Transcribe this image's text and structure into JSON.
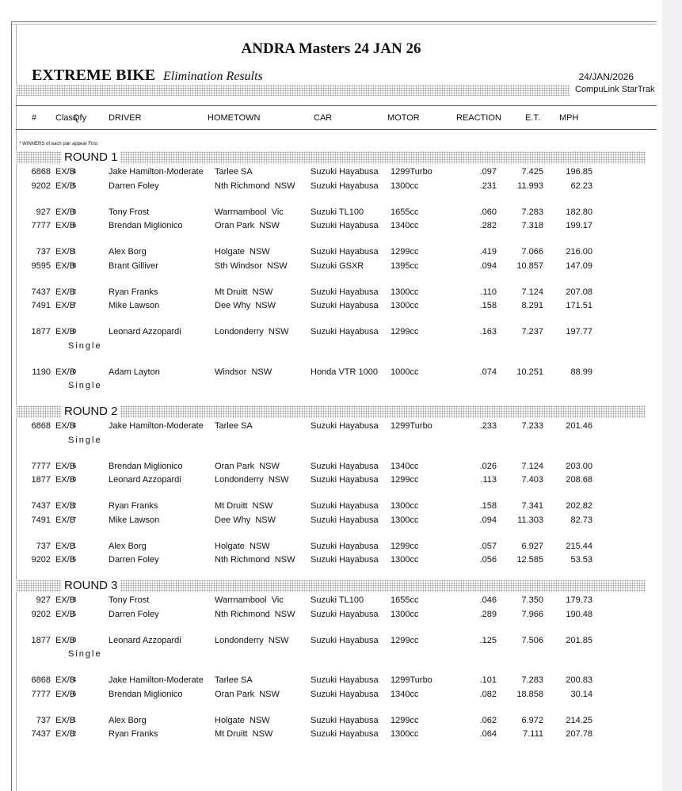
{
  "header": {
    "title": "ANDRA Masters 24 JAN 26",
    "event_class": "EXTREME BIKE",
    "subtitle": "Elimination Results",
    "date": "24/JAN/2026",
    "software": "CompuLink StarTrak"
  },
  "columns": [
    "#",
    "Class",
    "Qfy",
    "DRIVER",
    "HOMETOWN",
    "CAR",
    "MOTOR",
    "REACTION",
    "E.T.",
    "MPH"
  ],
  "note": "* WINNERS of each pair appear First",
  "rounds": [
    {
      "label": "ROUND 1",
      "pairs": [
        {
          "rows": [
            [
              "6868",
              "EX/B",
              "4",
              "Jake Hamilton-Moderate",
              "Tarlee SA",
              "Suzuki Hayabusa",
              "1299Turbo",
              ".097",
              "7.425",
              "196.85"
            ],
            [
              "9202",
              "EX/B",
              "5",
              "Darren Foley",
              "Nth Richmond  NSW",
              "Suzuki Hayabusa",
              "1300cc",
              ".231",
              "11.993",
              "62.23"
            ]
          ]
        },
        {
          "rows": [
            [
              "927",
              "EX/B",
              "3",
              "Tony Frost",
              "Warrnambool  Vic",
              "Suzuki TL100",
              "1655cc",
              ".060",
              "7.283",
              "182.80"
            ],
            [
              "7777",
              "EX/B",
              "6",
              "Brendan Miglionico",
              "Oran Park  NSW",
              "Suzuki Hayabusa",
              "1340cc",
              ".282",
              "7.318",
              "199.17"
            ]
          ]
        },
        {
          "rows": [
            [
              "737",
              "EX/B",
              "1",
              "Alex Borg",
              "Holgate  NSW",
              "Suzuki Hayabusa",
              "1299cc",
              ".419",
              "7.066",
              "216.00"
            ],
            [
              "9595",
              "EX/B",
              "8",
              "Brant Gilliver",
              "Sth Windsor  NSW",
              "Suzuki GSXR",
              "1395cc",
              ".094",
              "10.857",
              "147.09"
            ]
          ]
        },
        {
          "rows": [
            [
              "7437",
              "EX/B",
              "2",
              "Ryan Franks",
              "Mt Druitt  NSW",
              "Suzuki Hayabusa",
              "1300cc",
              ".110",
              "7.124",
              "207.08"
            ],
            [
              "7491",
              "EX/B",
              "7",
              "Mike Lawson",
              "Dee Why  NSW",
              "Suzuki Hayabusa",
              "1300cc",
              ".158",
              "8.291",
              "171.51"
            ]
          ]
        },
        {
          "rows": [
            [
              "1877",
              "EX/B",
              "0",
              "Leonard Azzopardi",
              "Londonderry  NSW",
              "Suzuki Hayabusa",
              "1299cc",
              ".163",
              "7.237",
              "197.77"
            ]
          ],
          "note": "Single"
        },
        {
          "rows": [
            [
              "1190",
              "EX/B",
              "0",
              "Adam Layton",
              "Windsor  NSW",
              "Honda VTR 1000",
              "1000cc",
              ".074",
              "10.251",
              "88.99"
            ]
          ],
          "note": "Single"
        }
      ]
    },
    {
      "label": "ROUND 2",
      "pairs": [
        {
          "rows": [
            [
              "6868",
              "EX/B",
              "4",
              "Jake Hamilton-Moderate",
              "Tarlee SA",
              "Suzuki Hayabusa",
              "1299Turbo",
              ".233",
              "7.233",
              "201.46"
            ]
          ],
          "note": "Single"
        },
        {
          "rows": [
            [
              "7777",
              "EX/B",
              "6",
              "Brendan Miglionico",
              "Oran Park  NSW",
              "Suzuki Hayabusa",
              "1340cc",
              ".026",
              "7.124",
              "203.00"
            ],
            [
              "1877",
              "EX/B",
              "0",
              "Leonard Azzopardi",
              "Londonderry  NSW",
              "Suzuki Hayabusa",
              "1299cc",
              ".113",
              "7.403",
              "208.68"
            ]
          ]
        },
        {
          "rows": [
            [
              "7437",
              "EX/B",
              "2",
              "Ryan Franks",
              "Mt Druitt  NSW",
              "Suzuki Hayabusa",
              "1300cc",
              ".158",
              "7.341",
              "202.82"
            ],
            [
              "7491",
              "EX/B",
              "7",
              "Mike Lawson",
              "Dee Why  NSW",
              "Suzuki Hayabusa",
              "1300cc",
              ".094",
              "11.303",
              "82.73"
            ]
          ]
        },
        {
          "rows": [
            [
              "737",
              "EX/B",
              "1",
              "Alex Borg",
              "Holgate  NSW",
              "Suzuki Hayabusa",
              "1299cc",
              ".057",
              "6.927",
              "215.44"
            ],
            [
              "9202",
              "EX/B",
              "5",
              "Darren Foley",
              "Nth Richmond  NSW",
              "Suzuki Hayabusa",
              "1300cc",
              ".056",
              "12.585",
              "53.53"
            ]
          ]
        }
      ]
    },
    {
      "label": "ROUND 3",
      "pairs": [
        {
          "rows": [
            [
              "927",
              "EX/B",
              "3",
              "Tony Frost",
              "Warrnambool  Vic",
              "Suzuki TL100",
              "1655cc",
              ".046",
              "7.350",
              "179.73"
            ],
            [
              "9202",
              "EX/B",
              "5",
              "Darren Foley",
              "Nth Richmond  NSW",
              "Suzuki Hayabusa",
              "1300cc",
              ".289",
              "7.966",
              "190.48"
            ]
          ]
        },
        {
          "rows": [
            [
              "1877",
              "EX/B",
              "0",
              "Leonard Azzopardi",
              "Londonderry  NSW",
              "Suzuki Hayabusa",
              "1299cc",
              ".125",
              "7.506",
              "201.85"
            ]
          ],
          "note": "Single"
        },
        {
          "rows": [
            [
              "6868",
              "EX/B",
              "4",
              "Jake Hamilton-Moderate",
              "Tarlee SA",
              "Suzuki Hayabusa",
              "1299Turbo",
              ".101",
              "7.283",
              "200.83"
            ],
            [
              "7777",
              "EX/B",
              "6",
              "Brendan Miglionico",
              "Oran Park  NSW",
              "Suzuki Hayabusa",
              "1340cc",
              ".082",
              "18.858",
              "30.14"
            ]
          ]
        },
        {
          "rows": [
            [
              "737",
              "EX/B",
              "1",
              "Alex Borg",
              "Holgate  NSW",
              "Suzuki Hayabusa",
              "1299cc",
              ".062",
              "6.972",
              "214.25"
            ],
            [
              "7437",
              "EX/B",
              "2",
              "Ryan Franks",
              "Mt Druitt  NSW",
              "Suzuki Hayabusa",
              "1300cc",
              ".064",
              "7.111",
              "207.78"
            ]
          ]
        }
      ]
    }
  ]
}
